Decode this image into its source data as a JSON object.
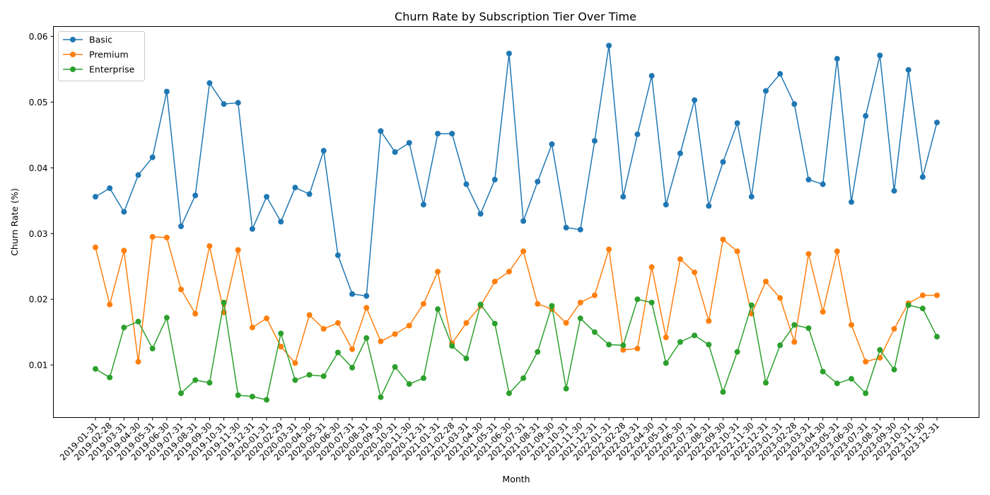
{
  "chart_data": {
    "type": "line",
    "title": "Churn Rate by Subscription Tier Over Time",
    "xlabel": "Month",
    "ylabel": "Churn Rate (%)",
    "ylim": [
      0.002,
      0.0615
    ],
    "yticks": [
      "0.01",
      "0.02",
      "0.03",
      "0.04",
      "0.05",
      "0.06"
    ],
    "ytick_values": [
      0.01,
      0.02,
      0.03,
      0.04,
      0.05,
      0.06
    ],
    "grid": false,
    "legend_position": "upper-left",
    "markers": true,
    "categories": [
      "2019-01-31",
      "2019-02-28",
      "2019-03-31",
      "2019-04-30",
      "2019-05-31",
      "2019-06-30",
      "2019-07-31",
      "2019-08-31",
      "2019-09-30",
      "2019-10-31",
      "2019-11-30",
      "2019-12-31",
      "2020-01-31",
      "2020-02-29",
      "2020-03-31",
      "2020-04-30",
      "2020-05-31",
      "2020-06-30",
      "2020-07-31",
      "2020-08-31",
      "2020-09-30",
      "2020-10-31",
      "2020-11-30",
      "2020-12-31",
      "2021-01-31",
      "2021-02-28",
      "2021-03-31",
      "2021-04-30",
      "2021-05-31",
      "2021-06-30",
      "2021-07-31",
      "2021-08-31",
      "2021-09-30",
      "2021-10-31",
      "2021-11-30",
      "2021-12-31",
      "2022-01-31",
      "2022-02-28",
      "2022-03-31",
      "2022-04-30",
      "2022-05-31",
      "2022-06-30",
      "2022-07-31",
      "2022-08-31",
      "2022-09-30",
      "2022-10-31",
      "2022-11-30",
      "2022-12-31",
      "2023-01-31",
      "2023-02-28",
      "2023-03-31",
      "2023-04-30",
      "2023-05-31",
      "2023-06-30",
      "2023-07-31",
      "2023-08-31",
      "2023-09-30",
      "2023-10-31",
      "2023-11-30",
      "2023-12-31"
    ],
    "series": [
      {
        "name": "Basic",
        "color": "#1f77b4",
        "values": [
          0.0356,
          0.0369,
          0.0333,
          0.0389,
          0.0416,
          0.0516,
          0.0311,
          0.0358,
          0.0529,
          0.0497,
          0.0499,
          0.0307,
          0.0356,
          0.0318,
          0.037,
          0.036,
          0.0426,
          0.0267,
          0.0208,
          0.0205,
          0.0456,
          0.0424,
          0.0438,
          0.0344,
          0.0452,
          0.0452,
          0.0375,
          0.033,
          0.0382,
          0.0574,
          0.0319,
          0.0379,
          0.0436,
          0.0309,
          0.0306,
          0.0441,
          0.0586,
          0.0356,
          0.0451,
          0.054,
          0.0344,
          0.0422,
          0.0503,
          0.0342,
          0.0409,
          0.0468,
          0.0356,
          0.0517,
          0.0543,
          0.0497,
          0.0382,
          0.0375,
          0.0566,
          0.0348,
          0.0479,
          0.0571,
          0.0365,
          0.0549,
          0.0386,
          0.0469
        ]
      },
      {
        "name": "Premium",
        "color": "#ff7f0e",
        "values": [
          0.0279,
          0.0192,
          0.0274,
          0.0105,
          0.0295,
          0.0294,
          0.0215,
          0.0178,
          0.0281,
          0.018,
          0.0275,
          0.0157,
          0.0171,
          0.0128,
          0.0103,
          0.0176,
          0.0155,
          0.0164,
          0.0124,
          0.0187,
          0.0136,
          0.0147,
          0.016,
          0.0193,
          0.0242,
          0.0133,
          0.0164,
          0.019,
          0.0227,
          0.0242,
          0.0273,
          0.0193,
          0.0185,
          0.0164,
          0.0195,
          0.0206,
          0.0276,
          0.0123,
          0.0125,
          0.0249,
          0.0142,
          0.0261,
          0.0241,
          0.0167,
          0.0291,
          0.0273,
          0.0178,
          0.0227,
          0.0202,
          0.0135,
          0.0269,
          0.0181,
          0.0273,
          0.0161,
          0.0105,
          0.0111,
          0.0155,
          0.0194,
          0.0206,
          0.0206
        ]
      },
      {
        "name": "Enterprise",
        "color": "#2ca02c",
        "values": [
          0.0094,
          0.0081,
          0.0157,
          0.0166,
          0.0125,
          0.0172,
          0.0057,
          0.0077,
          0.0073,
          0.0195,
          0.0054,
          0.0052,
          0.0047,
          0.0148,
          0.0077,
          0.0085,
          0.0083,
          0.0119,
          0.0096,
          0.0141,
          0.0051,
          0.0097,
          0.0071,
          0.008,
          0.0185,
          0.0129,
          0.011,
          0.0192,
          0.0163,
          0.0057,
          0.008,
          0.012,
          0.019,
          0.0064,
          0.0171,
          0.015,
          0.0131,
          0.013,
          0.02,
          0.0195,
          0.0103,
          0.0135,
          0.0145,
          0.0131,
          0.0059,
          0.012,
          0.0191,
          0.0073,
          0.013,
          0.0161,
          0.0156,
          0.009,
          0.0072,
          0.0079,
          0.0057,
          0.0123,
          0.0093,
          0.0191,
          0.0186,
          0.0143
        ]
      }
    ]
  }
}
